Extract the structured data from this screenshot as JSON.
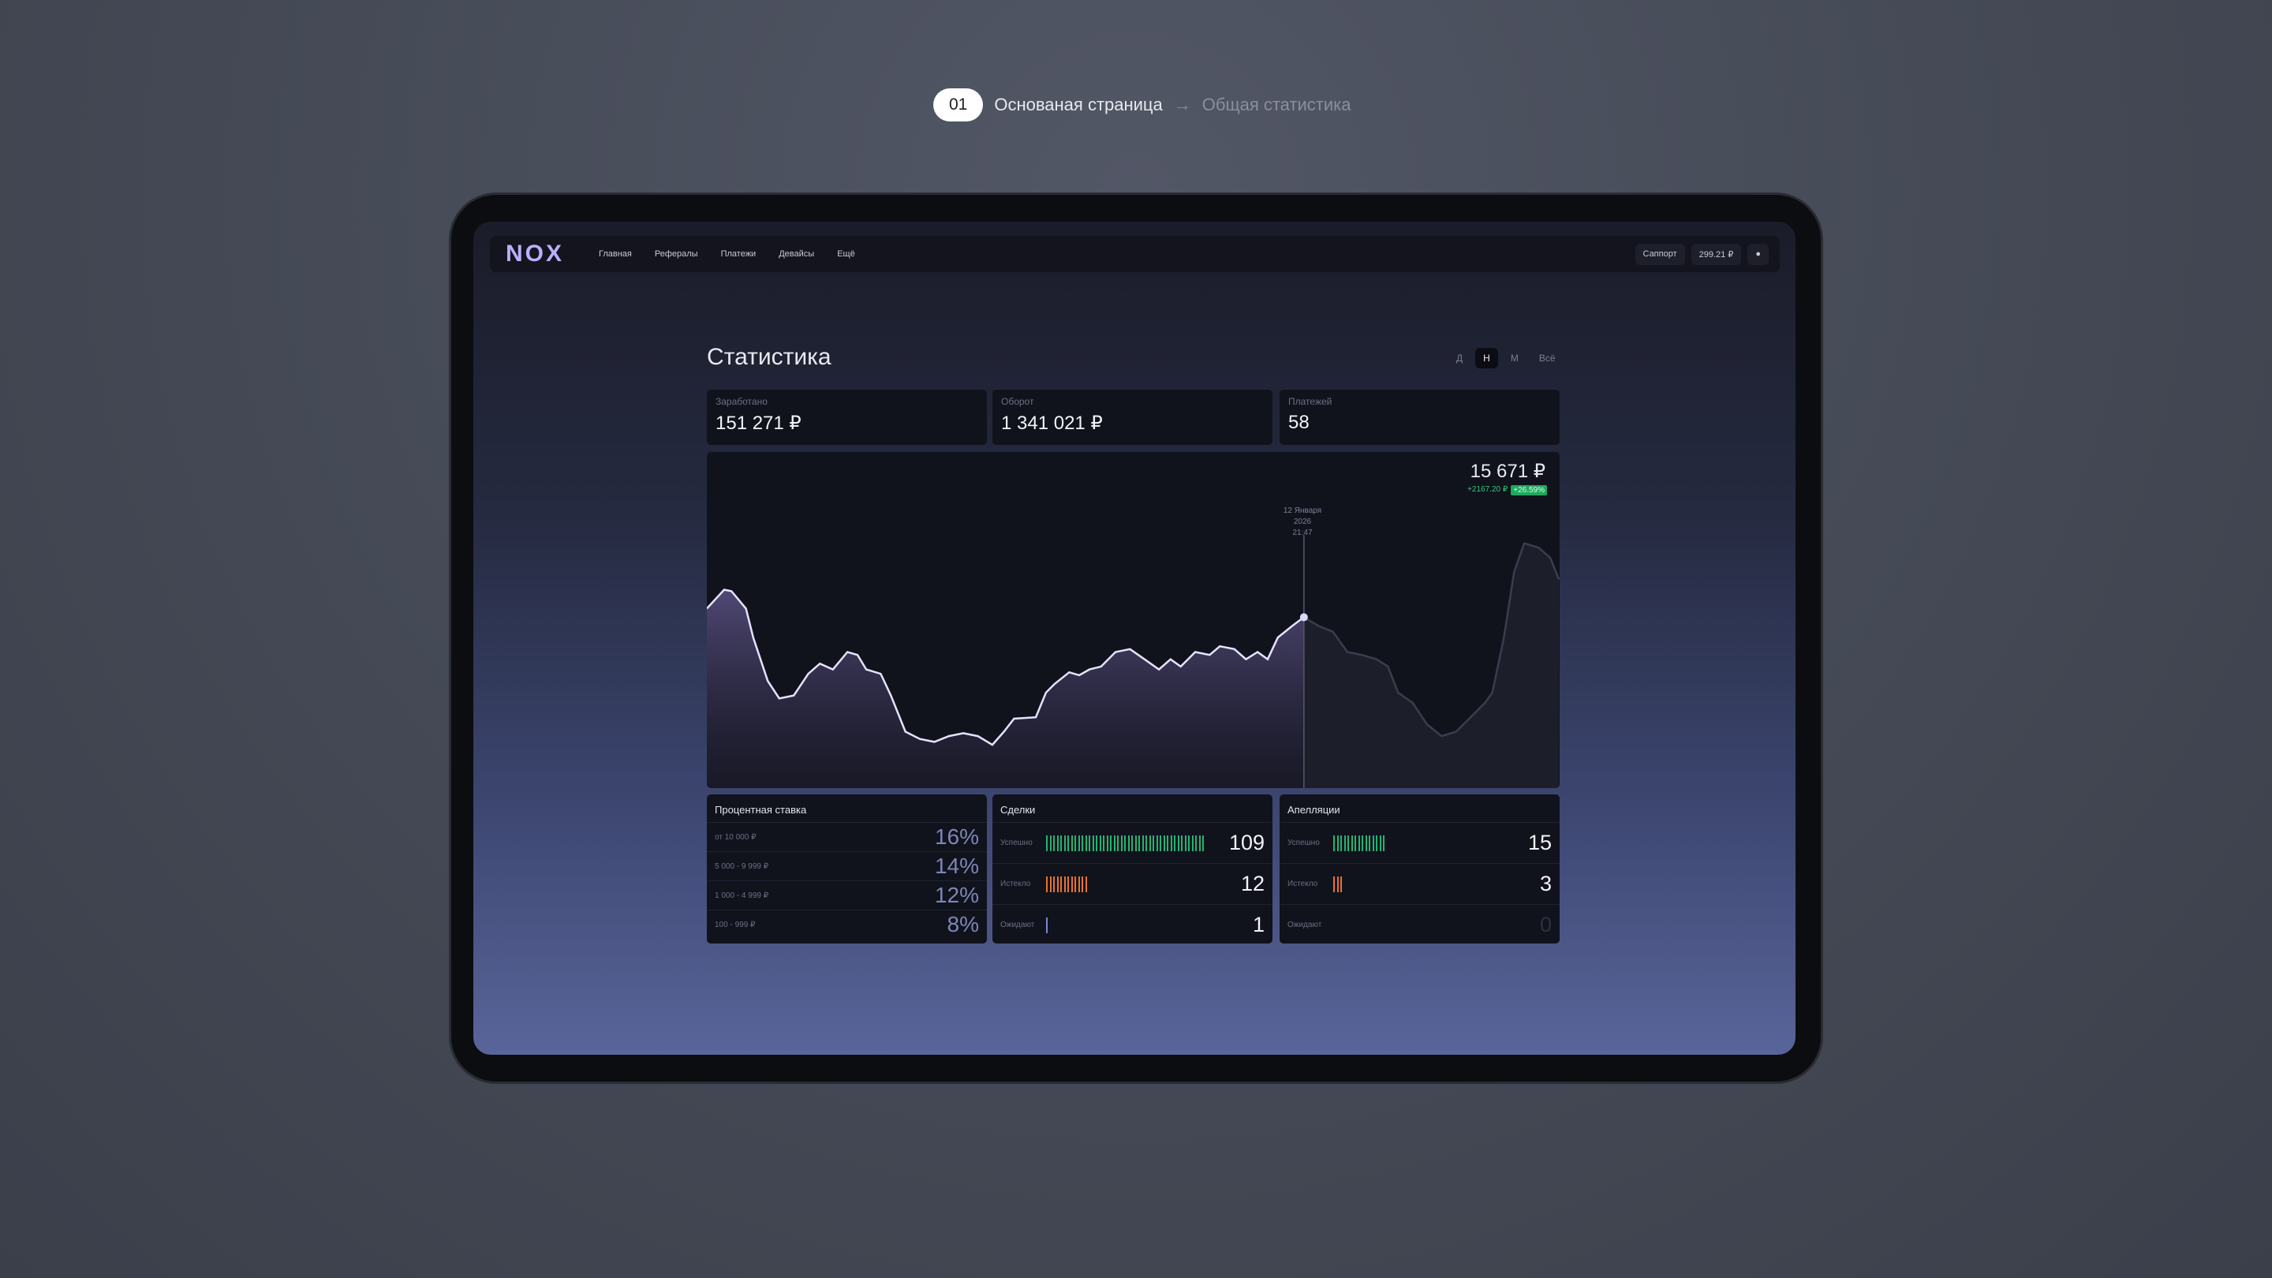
{
  "breadcrumb": {
    "step": "01",
    "current": "Основаная страница",
    "next": "Общая статистика"
  },
  "nav": {
    "logo": "NOX",
    "links": [
      "Главная",
      "Рефералы",
      "Платежи",
      "Девайсы",
      "Ещё"
    ],
    "support": "Саппорт",
    "balance": "299.21 ₽"
  },
  "page": {
    "title": "Статистика",
    "periods": [
      "Д",
      "Н",
      "М",
      "Всё"
    ]
  },
  "stats": [
    {
      "label": "Заработано",
      "value": "151 271 ₽"
    },
    {
      "label": "Оборот",
      "value": "1 341 021 ₽"
    },
    {
      "label": "Платежей",
      "value": "58"
    }
  ],
  "chart": {
    "value": "15 671 ₽",
    "change": "+2167.20 ₽",
    "change_pct": "+26.59%",
    "tooltip_date": "12 Января 2026",
    "tooltip_time": "21:47"
  },
  "rates": {
    "title": "Процентная ставка",
    "rows": [
      {
        "label": "от 10 000 ₽",
        "value": "16%"
      },
      {
        "label": "5 000 - 9 999 ₽",
        "value": "14%"
      },
      {
        "label": "1 000 - 4 999 ₽",
        "value": "12%"
      },
      {
        "label": "100 - 999 ₽",
        "value": "8%"
      }
    ]
  },
  "deals": {
    "title": "Сделки",
    "rows": [
      {
        "label": "Успешно",
        "value": 109
      },
      {
        "label": "Истекло",
        "value": 12
      },
      {
        "label": "Ожидают",
        "value": 1
      }
    ]
  },
  "appeals": {
    "title": "Апелляции",
    "rows": [
      {
        "label": "Успешно",
        "value": 15
      },
      {
        "label": "Истекло",
        "value": 3
      },
      {
        "label": "Ожидают",
        "value": 0
      }
    ]
  }
}
